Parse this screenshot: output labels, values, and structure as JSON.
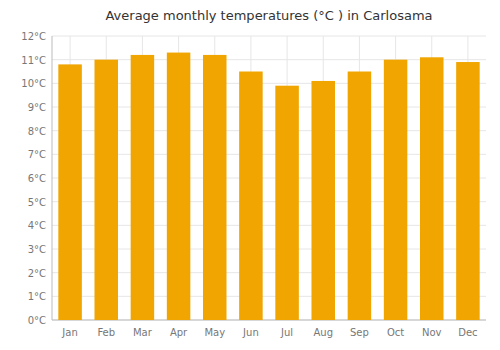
{
  "chart_data": {
    "type": "bar",
    "title": "Average monthly temperatures (°C ) in Carlosama",
    "categories": [
      "Jan",
      "Feb",
      "Mar",
      "Apr",
      "May",
      "Jun",
      "Jul",
      "Aug",
      "Sep",
      "Oct",
      "Nov",
      "Dec"
    ],
    "values": [
      10.8,
      11.0,
      11.2,
      11.3,
      11.2,
      10.5,
      9.9,
      10.1,
      10.5,
      11.0,
      11.1,
      10.9
    ],
    "color": "#F0A500",
    "ylim": [
      0,
      12
    ],
    "yticks": [
      {
        "value": 0,
        "label": "0°C"
      },
      {
        "value": 1,
        "label": "1°C"
      },
      {
        "value": 2,
        "label": "2°C"
      },
      {
        "value": 3,
        "label": "3°C"
      },
      {
        "value": 4,
        "label": "4°C"
      },
      {
        "value": 5,
        "label": "5°C"
      },
      {
        "value": 6,
        "label": "6°C"
      },
      {
        "value": 7,
        "label": "7°C"
      },
      {
        "value": 8,
        "label": "8°C"
      },
      {
        "value": 9,
        "label": "9°C"
      },
      {
        "value": 10,
        "label": "10°C"
      },
      {
        "value": 11,
        "label": "11°C"
      },
      {
        "value": 12,
        "label": "12°C"
      }
    ],
    "grid": true
  }
}
